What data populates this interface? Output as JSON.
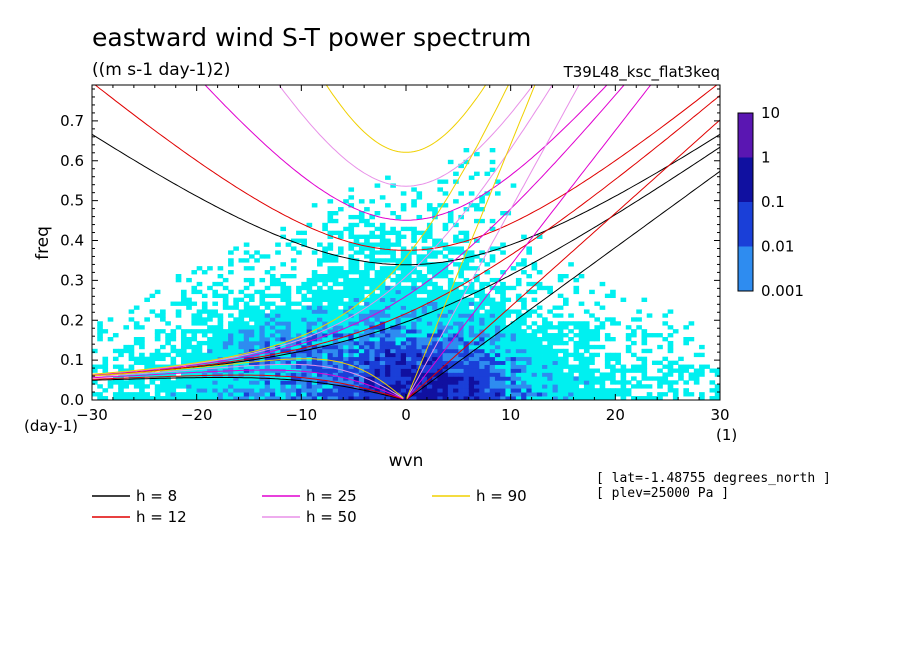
{
  "chart_data": {
    "type": "heatmap",
    "title": "eastward wind S-T power spectrum",
    "subtitle": "((m s-1 day-1)2)",
    "run_label": "T39L48_ksc_flat3keq",
    "xlabel": "wvn",
    "ylabel": "freq",
    "x_unit": "(1)",
    "y_unit": "(day-1)",
    "xlim": [
      -30,
      30
    ],
    "ylim": [
      0,
      0.79
    ],
    "xticks": [
      "-30",
      "-20",
      "-10",
      "0",
      "10",
      "20",
      "30"
    ],
    "yticks": [
      "0.0",
      "0.1",
      "0.2",
      "0.3",
      "0.4",
      "0.5",
      "0.6",
      "0.7"
    ],
    "colorbar": {
      "levels": [
        "10",
        "1",
        "0.1",
        "0.01",
        "0.001"
      ],
      "colors": [
        "#5a16b2",
        "#1010a0",
        "#1a3fd8",
        "#2e8cf0",
        "#00f0f0"
      ]
    },
    "dispersion_curves": [
      {
        "name": "h =  8",
        "h": 8,
        "color": "#000000"
      },
      {
        "name": "h = 12",
        "h": 12,
        "color": "#e00000"
      },
      {
        "name": "h = 25",
        "h": 25,
        "color": "#e000d0"
      },
      {
        "name": "h = 50",
        "h": 50,
        "color": "#e890e8"
      },
      {
        "name": "h = 90",
        "h": 90,
        "color": "#f0d000"
      }
    ],
    "info": [
      "[ lat=-1.48755 degrees_north ]",
      "[ plev=25000 Pa ]"
    ]
  }
}
